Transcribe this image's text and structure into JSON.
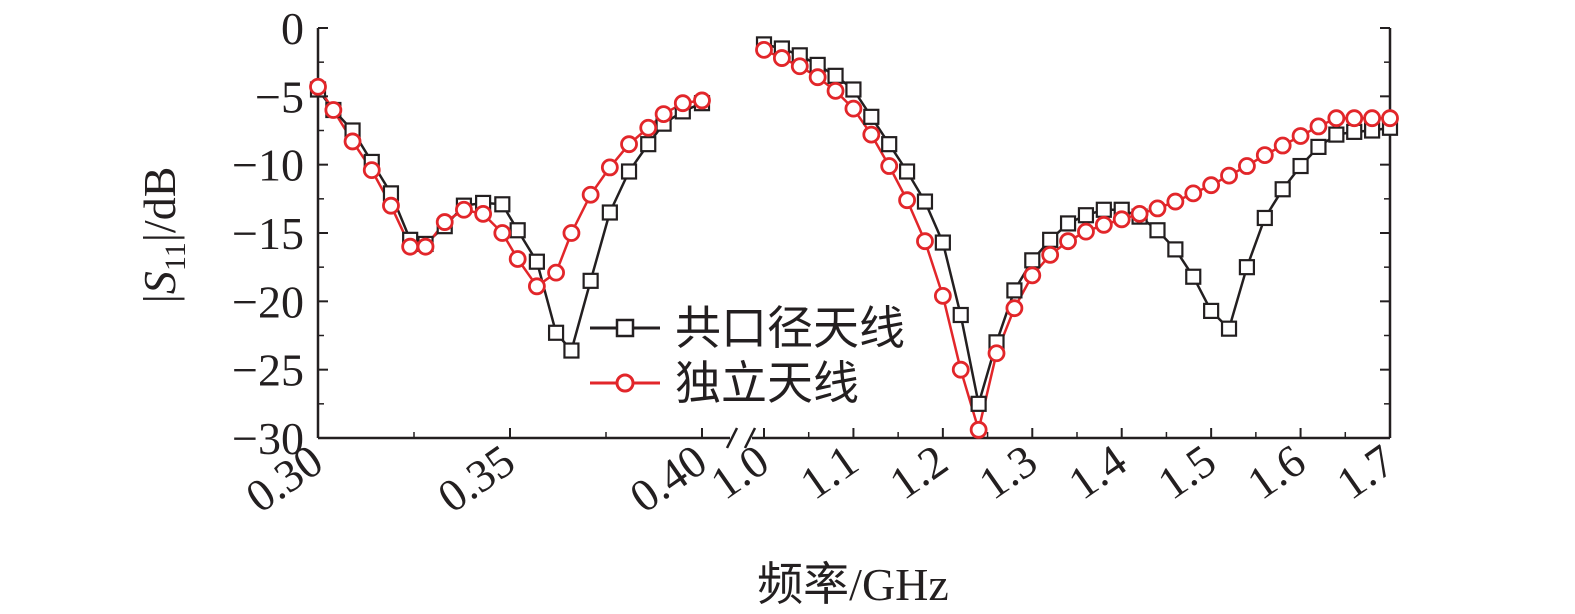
{
  "chart_data": {
    "type": "line",
    "ylabel": "|S11|/dB",
    "xlabel": "频率/GHz",
    "axis_break": true,
    "grid": false,
    "legend_position": "center",
    "ylim": [
      -30,
      0
    ],
    "y_ticks": [
      "0",
      "−5",
      "−10",
      "−15",
      "−20",
      "−25",
      "−30"
    ],
    "y_tick_values": [
      0,
      -5,
      -10,
      -15,
      -20,
      -25,
      -30
    ],
    "segments": [
      {
        "xlim": [
          0.3,
          0.4
        ],
        "ticks": [
          0.3,
          0.35,
          0.4
        ],
        "tick_labels": [
          "0.30",
          "0.35",
          "0.40"
        ]
      },
      {
        "xlim": [
          1.0,
          1.7
        ],
        "ticks": [
          1.0,
          1.1,
          1.2,
          1.3,
          1.4,
          1.5,
          1.6,
          1.7
        ],
        "tick_labels": [
          "1.0",
          "1.1",
          "1.2",
          "1.3",
          "1.4",
          "1.5",
          "1.6",
          "1.7"
        ]
      }
    ],
    "series": [
      {
        "name": "共口径天线",
        "color": "#231f20",
        "marker": "square",
        "segments": [
          {
            "x": [
              0.3,
              0.304,
              0.309,
              0.314,
              0.319,
              0.324,
              0.328,
              0.333,
              0.338,
              0.343,
              0.348,
              0.352,
              0.357,
              0.362,
              0.366,
              0.371,
              0.376,
              0.381,
              0.386,
              0.39,
              0.395,
              0.4
            ],
            "y": [
              -4.5,
              -6.0,
              -7.5,
              -9.8,
              -12.1,
              -15.5,
              -15.8,
              -14.5,
              -13.0,
              -12.8,
              -12.9,
              -14.8,
              -17.1,
              -22.3,
              -23.6,
              -18.5,
              -13.5,
              -10.5,
              -8.5,
              -7.0,
              -6.1,
              -5.5
            ]
          },
          {
            "x": [
              1.0,
              1.02,
              1.04,
              1.06,
              1.08,
              1.1,
              1.12,
              1.14,
              1.16,
              1.18,
              1.2,
              1.22,
              1.24,
              1.26,
              1.28,
              1.3,
              1.32,
              1.34,
              1.36,
              1.38,
              1.4,
              1.42,
              1.44,
              1.46,
              1.48,
              1.5,
              1.52,
              1.54,
              1.56,
              1.58,
              1.6,
              1.62,
              1.64,
              1.66,
              1.68,
              1.7
            ],
            "y": [
              -1.2,
              -1.5,
              -2.0,
              -2.7,
              -3.5,
              -4.5,
              -6.5,
              -8.5,
              -10.5,
              -12.7,
              -15.7,
              -21.0,
              -27.5,
              -23.0,
              -19.2,
              -17.0,
              -15.5,
              -14.3,
              -13.7,
              -13.3,
              -13.3,
              -13.8,
              -14.8,
              -16.2,
              -18.2,
              -20.7,
              -22.0,
              -17.5,
              -13.9,
              -11.8,
              -10.1,
              -8.7,
              -7.8,
              -7.6,
              -7.5,
              -7.3
            ]
          }
        ]
      },
      {
        "name": "独立天线",
        "color": "#e2262a",
        "marker": "circle",
        "segments": [
          {
            "x": [
              0.3,
              0.304,
              0.309,
              0.314,
              0.319,
              0.324,
              0.328,
              0.333,
              0.338,
              0.343,
              0.348,
              0.352,
              0.357,
              0.362,
              0.366,
              0.371,
              0.376,
              0.381,
              0.386,
              0.39,
              0.395,
              0.4
            ],
            "y": [
              -4.3,
              -6.0,
              -8.3,
              -10.4,
              -13.0,
              -16.0,
              -16.0,
              -14.2,
              -13.3,
              -13.6,
              -15.0,
              -16.9,
              -18.9,
              -17.9,
              -15.0,
              -12.2,
              -10.2,
              -8.5,
              -7.3,
              -6.3,
              -5.5,
              -5.3
            ]
          },
          {
            "x": [
              1.0,
              1.02,
              1.04,
              1.06,
              1.08,
              1.1,
              1.12,
              1.14,
              1.16,
              1.18,
              1.2,
              1.22,
              1.24,
              1.26,
              1.28,
              1.3,
              1.32,
              1.34,
              1.36,
              1.38,
              1.4,
              1.42,
              1.44,
              1.46,
              1.48,
              1.5,
              1.52,
              1.54,
              1.56,
              1.58,
              1.6,
              1.62,
              1.64,
              1.66,
              1.68,
              1.7
            ],
            "y": [
              -1.6,
              -2.2,
              -2.8,
              -3.6,
              -4.6,
              -5.9,
              -7.8,
              -10.1,
              -12.6,
              -15.6,
              -19.6,
              -25.0,
              -29.4,
              -23.8,
              -20.5,
              -18.1,
              -16.6,
              -15.6,
              -14.9,
              -14.4,
              -14.0,
              -13.6,
              -13.2,
              -12.7,
              -12.1,
              -11.5,
              -10.8,
              -10.1,
              -9.3,
              -8.6,
              -7.9,
              -7.2,
              -6.6,
              -6.6,
              -6.6,
              -6.6
            ]
          }
        ]
      }
    ]
  }
}
